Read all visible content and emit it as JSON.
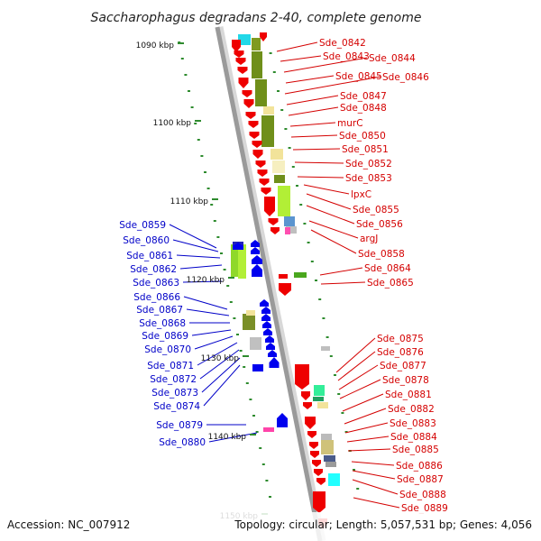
{
  "title": "Saccharophagus degradans 2-40, complete genome",
  "scale_labels": [
    "1090 kbp",
    "1100 kbp",
    "1110 kbp",
    "1120 kbp",
    "1130 kbp",
    "1140 kbp",
    "1150 kbp"
  ],
  "genes_right": [
    "Sde_0842",
    "Sde_0843",
    "Sde_0844",
    "Sde_0845",
    "Sde_0846",
    "Sde_0847",
    "Sde_0848",
    "murC",
    "Sde_0850",
    "Sde_0851",
    "Sde_0852",
    "Sde_0853",
    "lpxC",
    "Sde_0855",
    "Sde_0856",
    "argJ",
    "Sde_0858",
    "Sde_0864",
    "Sde_0865",
    "Sde_0875",
    "Sde_0876",
    "Sde_0877",
    "Sde_0878",
    "Sde_0881",
    "Sde_0882",
    "Sde_0883",
    "Sde_0884",
    "Sde_0885",
    "Sde_0886",
    "Sde_0887",
    "Sde_0888",
    "Sde_0889"
  ],
  "genes_left": [
    "Sde_0859",
    "Sde_0860",
    "Sde_0861",
    "Sde_0862",
    "Sde_0863",
    "Sde_0866",
    "Sde_0867",
    "Sde_0868",
    "Sde_0869",
    "Sde_0870",
    "Sde_0871",
    "Sde_0872",
    "Sde_0873",
    "Sde_0874",
    "Sde_0879",
    "Sde_0880"
  ],
  "footer_left": "Accession: NC_007912",
  "footer_right": "Topology: circular; Length: 5,057,531 bp; Genes: 4,056",
  "colors": {
    "forward_strand": "#ee0000",
    "reverse_strand": "#0000ee",
    "label_forward": "#d40000",
    "label_reverse": "#0000c8",
    "backbone": "#9a9a9a",
    "tick": "#2e8b2e"
  }
}
